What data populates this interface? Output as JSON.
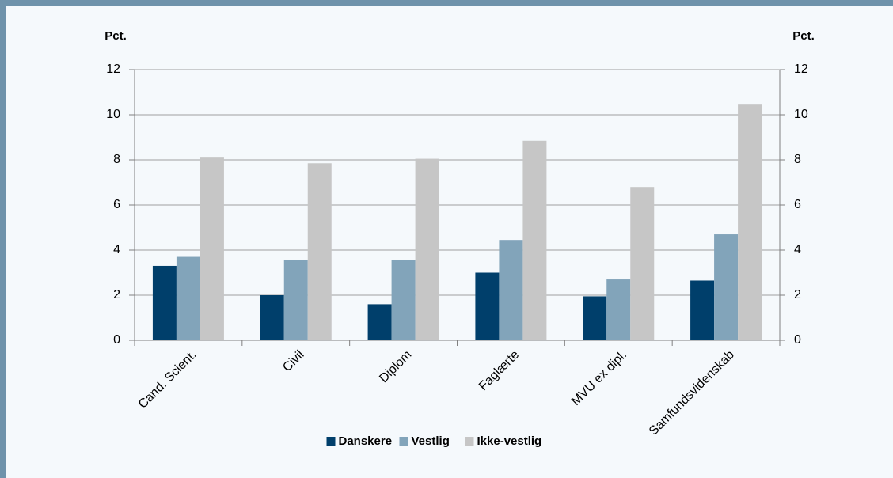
{
  "chart_data": {
    "type": "bar",
    "y_label": "Pct.",
    "y2_label": "Pct.",
    "categories": [
      "Cand. Scient.",
      "Civil",
      "Diplom",
      "Faglærte",
      "MVU ex dipl.",
      "Samfundsvidenskab"
    ],
    "series": [
      {
        "name": "Danskere",
        "color": "#003f6b",
        "values": [
          3.3,
          2.0,
          1.6,
          3.0,
          1.95,
          2.65
        ]
      },
      {
        "name": "Vestlig",
        "color": "#82a4ba",
        "values": [
          3.7,
          3.55,
          3.55,
          4.45,
          2.7,
          4.7
        ]
      },
      {
        "name": "Ikke-vestlig",
        "color": "#c6c6c6",
        "values": [
          8.1,
          7.85,
          8.05,
          8.85,
          6.8,
          10.45
        ]
      }
    ],
    "ylim": [
      0,
      12
    ],
    "yticks": [
      0,
      2,
      4,
      6,
      8,
      10,
      12
    ],
    "y2lim": [
      0,
      12
    ],
    "y2ticks": [
      0,
      2,
      4,
      6,
      8,
      10,
      12
    ],
    "grid": true,
    "legend": "bottom"
  }
}
